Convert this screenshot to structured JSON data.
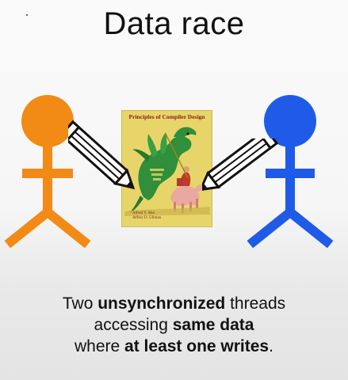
{
  "slide": {
    "title": "Data race",
    "caption": {
      "line1_a": "Two ",
      "line1_b": "unsynchronized",
      "line1_c": " threads",
      "line2_a": "accessing ",
      "line2_b": "same data",
      "line3_a": "where ",
      "line3_b": "at least one writes",
      "line3_c": "."
    }
  },
  "book": {
    "title": "Principles of Compiler Design",
    "authors_line1": "Alfred V. Aho",
    "authors_line2": "Jeffrey D. Ullman",
    "icon": "dragon-book-cover"
  },
  "figures": {
    "left_color": "#f28a16",
    "right_color": "#1f5be8",
    "left_icon": "stick-figure-icon",
    "right_icon": "stick-figure-icon"
  },
  "pencils": {
    "icon": "pencil-icon"
  }
}
